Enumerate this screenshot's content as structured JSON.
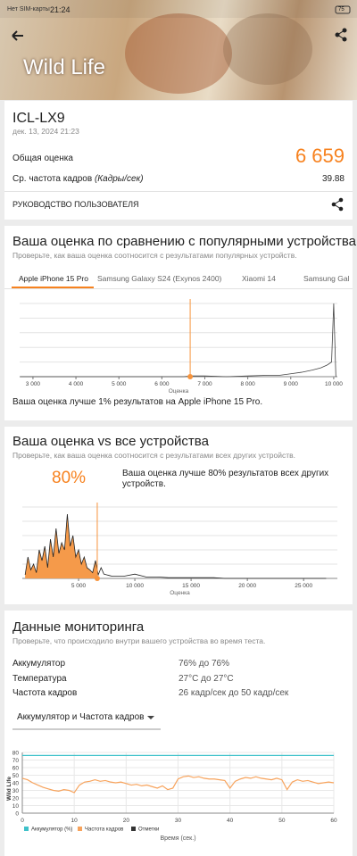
{
  "status_bar": {
    "carrier": "Нет SIM-карты",
    "time": "21:24",
    "battery": "75"
  },
  "header": {
    "title": "Wild Life"
  },
  "summary": {
    "device": "ICL-LX9",
    "date": "дек. 13, 2024 21:23",
    "overall_label": "Общая оценка",
    "overall_value": "6 659",
    "fps_label": "Ср. частота кадров",
    "fps_unit": "(Кадры/сек)",
    "fps_value": "39.88",
    "guide": "РУКОВОДСТВО ПОЛЬЗОВАТЕЛЯ"
  },
  "comparison": {
    "title": "Ваша оценка по сравнению с популярными устройствами",
    "subtitle": "Проверьте, как ваша оценка соотносится с результатами популярных устройств.",
    "tabs": [
      "Apple iPhone 15 Pro",
      "Samsung Galaxy S24 (Exynos 2400)",
      "Xiaomi 14",
      "Samsung Gal"
    ],
    "chart": {
      "type": "area",
      "x_label": "Оценка",
      "color": "#fcd2ae",
      "line_color": "#444444",
      "marker_color": "#f7943c",
      "marker_x": 6659,
      "x": [
        2700,
        3000,
        3500,
        4000,
        4500,
        5000,
        5500,
        6000,
        6500,
        6700,
        7000,
        7500,
        8000,
        8500,
        8750,
        9000,
        9250,
        9500,
        9700,
        9850,
        9950,
        10000,
        10050
      ],
      "values": [
        0,
        0,
        0,
        0,
        0,
        0,
        0,
        0,
        0,
        1,
        1,
        0,
        1,
        2,
        2,
        4,
        6,
        9,
        12,
        16,
        20,
        100,
        0
      ],
      "xlim": [
        2690,
        10085
      ],
      "ylim": [
        0,
        100
      ],
      "grid_y": [
        0,
        20,
        40,
        60,
        80,
        100
      ],
      "xticks": [
        {
          "value": 3000,
          "label": "3 000"
        },
        {
          "value": 4000,
          "label": "4 000"
        },
        {
          "value": 5000,
          "label": "5 000"
        },
        {
          "value": 6000,
          "label": "6 000"
        },
        {
          "value": 7000,
          "label": "7 000"
        },
        {
          "value": 8000,
          "label": "8 000"
        },
        {
          "value": 9000,
          "label": "9 000"
        },
        {
          "value": 10000,
          "label": "10 000"
        }
      ]
    },
    "note": "Ваша оценка лучше 1% результатов на Apple iPhone 15 Pro."
  },
  "all_devices": {
    "title": "Ваша оценка vs все устройства",
    "subtitle": "Проверьте, как ваша оценка соотносится с результатами всех других устройств.",
    "percent": "80%",
    "note": "Ваша оценка лучше 80% результатов всех других устройств.",
    "chart": {
      "type": "area",
      "x_label": "Оценка",
      "color": "#f59a4a",
      "line_color": "#222222",
      "marker_color": "#f7943c",
      "marker_x": 6659,
      "x": [
        250,
        500,
        750,
        1000,
        1250,
        1500,
        1750,
        2000,
        2250,
        2500,
        2750,
        3000,
        3250,
        3500,
        3750,
        4000,
        4250,
        4500,
        4750,
        5000,
        5250,
        5500,
        5750,
        6000,
        6250,
        6500,
        6750,
        7000,
        7250,
        7500,
        7750,
        8000,
        9000,
        10000,
        11000,
        12000,
        13000,
        14000,
        15000,
        16000,
        17000,
        18000,
        20000,
        22000,
        24000,
        26000,
        27000
      ],
      "values": [
        5,
        30,
        12,
        20,
        8,
        40,
        25,
        45,
        15,
        55,
        30,
        70,
        35,
        50,
        40,
        90,
        45,
        60,
        30,
        40,
        20,
        30,
        15,
        12,
        8,
        25,
        5,
        15,
        6,
        5,
        4,
        3,
        3,
        6,
        2,
        2,
        1,
        1,
        1,
        1,
        1,
        0,
        0,
        0,
        0,
        0,
        0
      ],
      "xlim": [
        0,
        28000
      ],
      "ylim": [
        0,
        100
      ],
      "grid_y": [
        0,
        20,
        40,
        60,
        80,
        100
      ],
      "xticks": [
        {
          "value": 5000,
          "label": "5 000"
        },
        {
          "value": 10000,
          "label": "10 000"
        },
        {
          "value": 15000,
          "label": "15 000"
        },
        {
          "value": 20000,
          "label": "20 000"
        },
        {
          "value": 25000,
          "label": "25 000"
        }
      ]
    }
  },
  "monitoring": {
    "title": "Данные мониторинга",
    "subtitle": "Проверьте, что происходило внутри вашего устройства во время теста.",
    "rows": [
      [
        "Аккумулятор",
        "76% до 76%"
      ],
      [
        "Температура",
        "27°C до 27°C"
      ],
      [
        "Частота кадров",
        "26 кадр/сек до 50 кадр/сек"
      ]
    ],
    "dropdown": "Аккумулятор и Частота кадров",
    "chart": {
      "type": "line",
      "y_label": "Wild Life",
      "x_label": "Время (сек.)",
      "xlim": [
        0,
        60
      ],
      "ylim": [
        0,
        80
      ],
      "xticks": [
        0,
        10,
        20,
        30,
        40,
        50,
        60
      ],
      "yticks": [
        0,
        10,
        20,
        30,
        40,
        50,
        60,
        70,
        80
      ],
      "grid": true,
      "series": [
        {
          "name": "Аккумулятор (%)",
          "color": "#3ec1c9",
          "x": [
            0,
            60
          ],
          "values": [
            76,
            76
          ]
        },
        {
          "name": "Частота кадров",
          "color": "#f7a35c",
          "x": [
            0,
            1,
            2,
            3,
            4,
            5,
            6,
            7,
            8,
            9,
            10,
            11,
            12,
            13,
            14,
            15,
            16,
            17,
            18,
            19,
            20,
            21,
            22,
            23,
            24,
            25,
            26,
            27,
            28,
            29,
            30,
            31,
            32,
            33,
            34,
            35,
            36,
            37,
            38,
            39,
            40,
            41,
            42,
            43,
            44,
            45,
            46,
            47,
            48,
            49,
            50,
            51,
            52,
            53,
            54,
            55,
            56,
            57,
            58,
            59,
            60
          ],
          "values": [
            46,
            44,
            40,
            37,
            34,
            32,
            30,
            29,
            31,
            30,
            27,
            37,
            41,
            42,
            44,
            42,
            43,
            41,
            40,
            41,
            39,
            37,
            38,
            36,
            37,
            35,
            33,
            36,
            31,
            33,
            45,
            48,
            49,
            47,
            48,
            46,
            45,
            45,
            44,
            43,
            33,
            42,
            45,
            47,
            46,
            48,
            46,
            45,
            44,
            46,
            44,
            31,
            41,
            44,
            42,
            43,
            41,
            39,
            40,
            41,
            40
          ]
        }
      ],
      "markers_legend": {
        "name": "Отметки",
        "color": "#333333"
      }
    }
  }
}
